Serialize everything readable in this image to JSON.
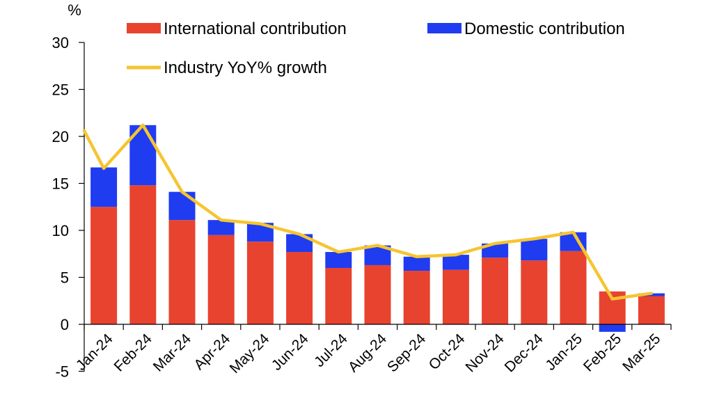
{
  "chart_data": {
    "type": "bar",
    "stacked": true,
    "title": "",
    "xlabel": "",
    "ylabel": "%",
    "ylim": [
      -5,
      30
    ],
    "yticks": [
      -5,
      0,
      5,
      10,
      15,
      20,
      25,
      30
    ],
    "grid": false,
    "legend": "top",
    "categories": [
      "Jan-24",
      "Feb-24",
      "Mar-24",
      "Apr-24",
      "May-24",
      "Jun-24",
      "Jul-24",
      "Aug-24",
      "Sep-24",
      "Oct-24",
      "Nov-24",
      "Dec-24",
      "Jan-25",
      "Feb-25",
      "Mar-25"
    ],
    "series": [
      {
        "name": "International contribution",
        "kind": "bar",
        "color": "#e8432f",
        "values": [
          12.5,
          14.8,
          11.1,
          9.5,
          8.8,
          7.7,
          6.0,
          6.3,
          5.7,
          5.8,
          7.1,
          6.8,
          7.8,
          3.5,
          3.0
        ]
      },
      {
        "name": "Domestic contribution",
        "kind": "bar",
        "color": "#1f3cf0",
        "values": [
          4.2,
          6.4,
          3.0,
          1.6,
          2.0,
          1.9,
          1.7,
          2.1,
          1.5,
          1.6,
          1.5,
          2.3,
          2.0,
          -0.8,
          0.3
        ]
      },
      {
        "name": "Industry YoY% growth",
        "kind": "line",
        "color": "#f5c531",
        "values": [
          16.6,
          21.2,
          14.1,
          11.1,
          10.7,
          9.6,
          7.7,
          8.4,
          7.2,
          7.4,
          8.6,
          9.1,
          9.8,
          2.7,
          3.3
        ],
        "start_value": 20.6
      }
    ]
  }
}
